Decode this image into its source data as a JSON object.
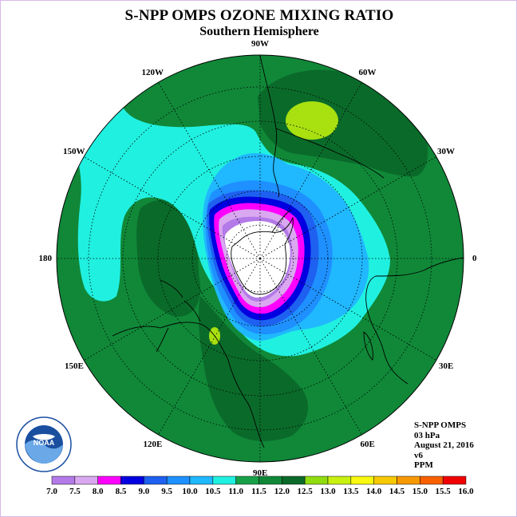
{
  "title": "S-NPP OMPS OZONE MIXING RATIO",
  "subtitle": "Southern Hemisphere",
  "longitude_labels": [
    {
      "text": "90W",
      "lon": -90
    },
    {
      "text": "60W",
      "lon": -60
    },
    {
      "text": "30W",
      "lon": -30
    },
    {
      "text": "0",
      "lon": 0
    },
    {
      "text": "30E",
      "lon": 30
    },
    {
      "text": "60E",
      "lon": 60
    },
    {
      "text": "90E",
      "lon": 90
    },
    {
      "text": "120E",
      "lon": 120
    },
    {
      "text": "150E",
      "lon": 150
    },
    {
      "text": "180",
      "lon": 180
    },
    {
      "text": "150W",
      "lon": -150
    },
    {
      "text": "120W",
      "lon": -120
    }
  ],
  "info": {
    "instrument": "S-NPP OMPS",
    "level": "03 hPa",
    "date": "August 21, 2016",
    "version": "v6",
    "units": "PPM"
  },
  "colorbar": {
    "labels": [
      "7.0",
      "7.5",
      "8.0",
      "8.5",
      "9.0",
      "9.5",
      "10.0",
      "10.5",
      "11.0",
      "11.5",
      "12.0",
      "12.5",
      "13.0",
      "13.5",
      "14.0",
      "14.5",
      "15.0",
      "15.5",
      "16.0"
    ],
    "colors": [
      "#b37ae8",
      "#d9a8f0",
      "#ff00ff",
      "#0000e0",
      "#1e60f0",
      "#1e90ff",
      "#20b8ff",
      "#20f0e0",
      "#18a048",
      "#108838",
      "#0a6a2a",
      "#90dc10",
      "#c8f010",
      "#f8f810",
      "#f8c800",
      "#f89800",
      "#f86000",
      "#f00000",
      "#8a5030"
    ]
  },
  "map": {
    "colors": {
      "background_green": "#108838",
      "dark_green": "#0a6a2a",
      "light_green_patch": "#a8e010",
      "cyan": "#20f0e0",
      "light_blue": "#20b8ff",
      "mid_blue": "#1e90ff",
      "blue": "#1e60f0",
      "dark_blue": "#0000e0",
      "magenta": "#ff00ff",
      "lavender": "#d9a8f0",
      "purple": "#b37ae8",
      "no_data": "#ffffff"
    }
  },
  "logo": {
    "text": "NOAA",
    "ring_text": "NATIONAL OCEANIC AND ATMOSPHERIC ADMINISTRATION · U.S. DEPARTMENT OF COMMERCE"
  }
}
